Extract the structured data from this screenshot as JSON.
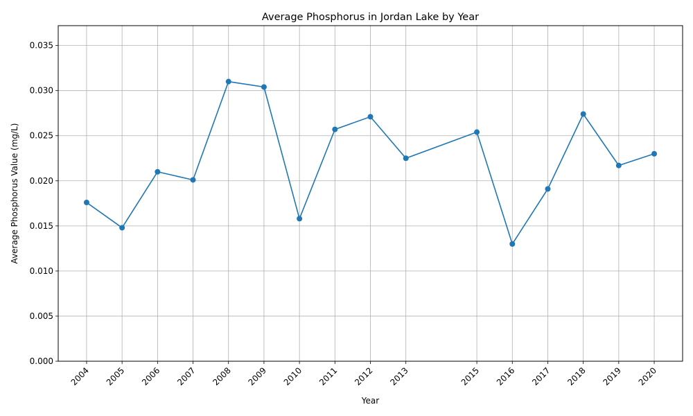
{
  "chart_data": {
    "type": "line",
    "title": "Average Phosphorus in Jordan Lake by Year",
    "xlabel": "Year",
    "ylabel": "Average Phosphorus Value (mg/L)",
    "x": [
      2004,
      2005,
      2006,
      2007,
      2008,
      2009,
      2010,
      2011,
      2012,
      2013,
      2015,
      2016,
      2017,
      2018,
      2019,
      2020
    ],
    "series": [
      {
        "values": [
          0.0176,
          0.0148,
          0.021,
          0.0201,
          0.031,
          0.0304,
          0.0158,
          0.0257,
          0.0271,
          0.0225,
          0.0254,
          0.013,
          0.0191,
          0.0274,
          0.0217,
          0.023
        ]
      }
    ],
    "xlim": [
      2003.2,
      2020.8
    ],
    "ylim": [
      0,
      0.0372
    ],
    "yticks": [
      "0.000",
      "0.005",
      "0.010",
      "0.015",
      "0.020",
      "0.025",
      "0.030",
      "0.035"
    ],
    "xticks": [
      "2004",
      "2005",
      "2006",
      "2007",
      "2008",
      "2009",
      "2010",
      "2011",
      "2012",
      "2013",
      "2015",
      "2016",
      "2017",
      "2018",
      "2019",
      "2020"
    ],
    "grid": true,
    "colors": {
      "line": "#1f77b4",
      "grid": "#b0b0b0"
    }
  }
}
